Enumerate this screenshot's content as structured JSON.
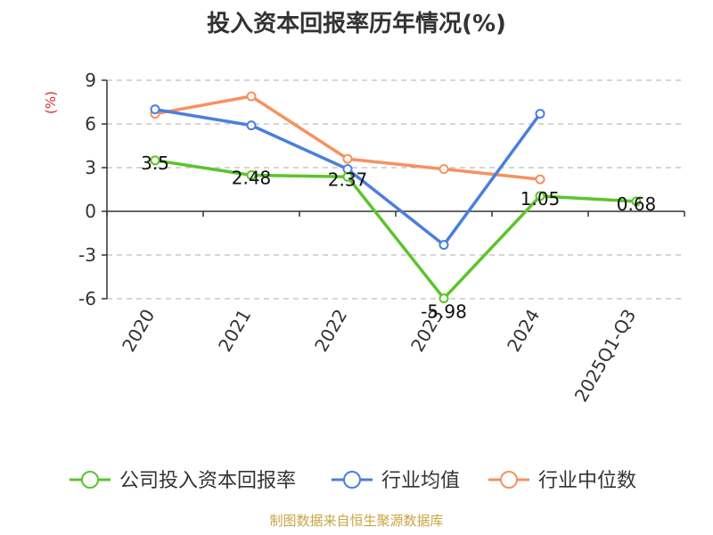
{
  "chart_data": {
    "type": "line",
    "title": "投入资本回报率历年情况(%)",
    "ylabel": "(%)",
    "categories": [
      "2020",
      "2021",
      "2022",
      "2023",
      "2024",
      "2025Q1-Q3"
    ],
    "ylim": [
      -6,
      9
    ],
    "yticks": [
      -6,
      -3,
      0,
      3,
      6,
      9
    ],
    "grid": true,
    "legend_position": "bottom",
    "series": [
      {
        "name": "公司投入资本回报率",
        "color": "#5cc42a",
        "values": [
          3.5,
          2.48,
          2.37,
          -5.98,
          1.05,
          0.68
        ],
        "labels": [
          "3.5",
          "2.48",
          "2.37",
          "-5.98",
          "1.05",
          "0.68"
        ]
      },
      {
        "name": "行业均值",
        "color": "#4a7fdc",
        "values": [
          7.0,
          5.9,
          2.9,
          -2.3,
          6.7,
          null
        ]
      },
      {
        "name": "行业中位数",
        "color": "#f5925f",
        "values": [
          6.7,
          7.9,
          3.6,
          2.9,
          2.2,
          null
        ]
      }
    ]
  },
  "footer": "制图数据来自恒生聚源数据库"
}
